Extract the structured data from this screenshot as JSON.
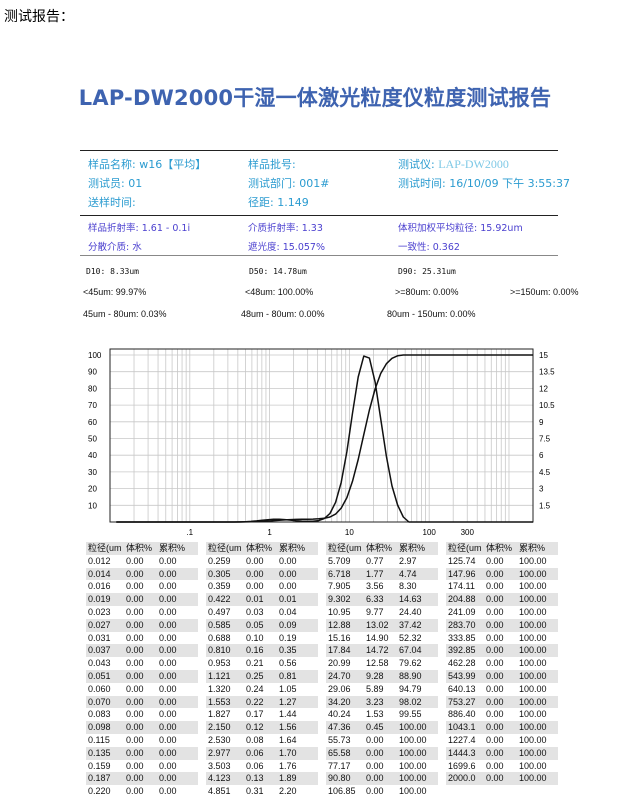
{
  "page_heading": "测试报告：",
  "report_title": "LAP-DW2000干湿一体激光粒度仪粒度测试报告",
  "info": {
    "sample_name": "样品名称: w16【平均】",
    "batch_no": "样品批号:",
    "instrument_label": "测试仪:",
    "instrument_value": "LAP-DW2000",
    "operator": "测试员: 01",
    "department": "测试部门: 001#",
    "test_time": "测试时间: 16/10/09 下午 3:55:37",
    "submit_time": "送样时间:",
    "span": "径距: 1.149"
  },
  "optics": {
    "sample_ri": "样品折射率: 1.61 - 0.1i",
    "medium_ri": "介质折射率: 1.33",
    "vol_mean": "体积加权平均粒径: 15.92um",
    "dispersant": "分散介质: 水",
    "obscuration": "遮光度: 15.057%",
    "uniformity": "一致性: 0.362"
  },
  "results": {
    "d10": "D10: 8.33um",
    "d50": "D50: 14.78um",
    "d90": "D90: 25.31um",
    "lt45": "<45um: 99.97%",
    "lt48": "<48um: 100.00%",
    "ge80": ">=80um: 0.00%",
    "ge150": ">=150um: 0.00%",
    "r45_80": "45um - 80um: 0.03%",
    "r48_80": "48um - 80um: 0.00%",
    "r80_150": "80um - 150um: 0.00%"
  },
  "table_headers": [
    "粒径(um",
    "体积%",
    "累积%"
  ],
  "chart_data": {
    "type": "line",
    "x_scale": "log",
    "xlim": [
      0.01,
      2000
    ],
    "x_ticks": [
      ".1",
      "1",
      "10",
      "100",
      "300"
    ],
    "y_left_ticks": [
      "100",
      "90",
      "80",
      "70",
      "60",
      "50",
      "40",
      "30",
      "20",
      "10"
    ],
    "y_right_ticks": [
      "15",
      "13.5",
      "12",
      "10.5",
      "9",
      "7.5",
      "6",
      "4.5",
      "3",
      "1.5"
    ],
    "y_left_lim": [
      0,
      100
    ],
    "y_right_lim": [
      0,
      15
    ],
    "grid": true,
    "series": [
      {
        "field": "体积%",
        "axis": "right"
      },
      {
        "field": "累积%",
        "axis": "left"
      }
    ],
    "columns": [
      [
        [
          "0.012",
          "0.00",
          "0.00"
        ],
        [
          "0.014",
          "0.00",
          "0.00"
        ],
        [
          "0.016",
          "0.00",
          "0.00"
        ],
        [
          "0.019",
          "0.00",
          "0.00"
        ],
        [
          "0.023",
          "0.00",
          "0.00"
        ],
        [
          "0.027",
          "0.00",
          "0.00"
        ],
        [
          "0.031",
          "0.00",
          "0.00"
        ],
        [
          "0.037",
          "0.00",
          "0.00"
        ],
        [
          "0.043",
          "0.00",
          "0.00"
        ],
        [
          "0.051",
          "0.00",
          "0.00"
        ],
        [
          "0.060",
          "0.00",
          "0.00"
        ],
        [
          "0.070",
          "0.00",
          "0.00"
        ],
        [
          "0.083",
          "0.00",
          "0.00"
        ],
        [
          "0.098",
          "0.00",
          "0.00"
        ],
        [
          "0.115",
          "0.00",
          "0.00"
        ],
        [
          "0.135",
          "0.00",
          "0.00"
        ],
        [
          "0.159",
          "0.00",
          "0.00"
        ],
        [
          "0.187",
          "0.00",
          "0.00"
        ],
        [
          "0.220",
          "0.00",
          "0.00"
        ]
      ],
      [
        [
          "0.259",
          "0.00",
          "0.00"
        ],
        [
          "0.305",
          "0.00",
          "0.00"
        ],
        [
          "0.359",
          "0.00",
          "0.00"
        ],
        [
          "0.422",
          "0.01",
          "0.01"
        ],
        [
          "0.497",
          "0.03",
          "0.04"
        ],
        [
          "0.585",
          "0.05",
          "0.09"
        ],
        [
          "0.688",
          "0.10",
          "0.19"
        ],
        [
          "0.810",
          "0.16",
          "0.35"
        ],
        [
          "0.953",
          "0.21",
          "0.56"
        ],
        [
          "1.121",
          "0.25",
          "0.81"
        ],
        [
          "1.320",
          "0.24",
          "1.05"
        ],
        [
          "1.553",
          "0.22",
          "1.27"
        ],
        [
          "1.827",
          "0.17",
          "1.44"
        ],
        [
          "2.150",
          "0.12",
          "1.56"
        ],
        [
          "2.530",
          "0.08",
          "1.64"
        ],
        [
          "2.977",
          "0.06",
          "1.70"
        ],
        [
          "3.503",
          "0.06",
          "1.76"
        ],
        [
          "4.123",
          "0.13",
          "1.89"
        ],
        [
          "4.851",
          "0.31",
          "2.20"
        ]
      ],
      [
        [
          "5.709",
          "0.77",
          "2.97"
        ],
        [
          "6.718",
          "1.77",
          "4.74"
        ],
        [
          "7.905",
          "3.56",
          "8.30"
        ],
        [
          "9.302",
          "6.33",
          "14.63"
        ],
        [
          "10.95",
          "9.77",
          "24.40"
        ],
        [
          "12.88",
          "13.02",
          "37.42"
        ],
        [
          "15.16",
          "14.90",
          "52.32"
        ],
        [
          "17.84",
          "14.72",
          "67.04"
        ],
        [
          "20.99",
          "12.58",
          "79.62"
        ],
        [
          "24.70",
          "9.28",
          "88.90"
        ],
        [
          "29.06",
          "5.89",
          "94.79"
        ],
        [
          "34.20",
          "3.23",
          "98.02"
        ],
        [
          "40.24",
          "1.53",
          "99.55"
        ],
        [
          "47.36",
          "0.45",
          "100.00"
        ],
        [
          "55.73",
          "0.00",
          "100.00"
        ],
        [
          "65.58",
          "0.00",
          "100.00"
        ],
        [
          "77.17",
          "0.00",
          "100.00"
        ],
        [
          "90.80",
          "0.00",
          "100.00"
        ],
        [
          "106.85",
          "0.00",
          "100.00"
        ]
      ],
      [
        [
          "125.74",
          "0.00",
          "100.00"
        ],
        [
          "147.96",
          "0.00",
          "100.00"
        ],
        [
          "174.11",
          "0.00",
          "100.00"
        ],
        [
          "204.88",
          "0.00",
          "100.00"
        ],
        [
          "241.09",
          "0.00",
          "100.00"
        ],
        [
          "283.70",
          "0.00",
          "100.00"
        ],
        [
          "333.85",
          "0.00",
          "100.00"
        ],
        [
          "392.85",
          "0.00",
          "100.00"
        ],
        [
          "462.28",
          "0.00",
          "100.00"
        ],
        [
          "543.99",
          "0.00",
          "100.00"
        ],
        [
          "640.13",
          "0.00",
          "100.00"
        ],
        [
          "753.27",
          "0.00",
          "100.00"
        ],
        [
          "886.40",
          "0.00",
          "100.00"
        ],
        [
          "1043.1",
          "0.00",
          "100.00"
        ],
        [
          "1227.4",
          "0.00",
          "100.00"
        ],
        [
          "1444.3",
          "0.00",
          "100.00"
        ],
        [
          "1699.6",
          "0.00",
          "100.00"
        ],
        [
          "2000.0",
          "0.00",
          "100.00"
        ]
      ]
    ]
  }
}
